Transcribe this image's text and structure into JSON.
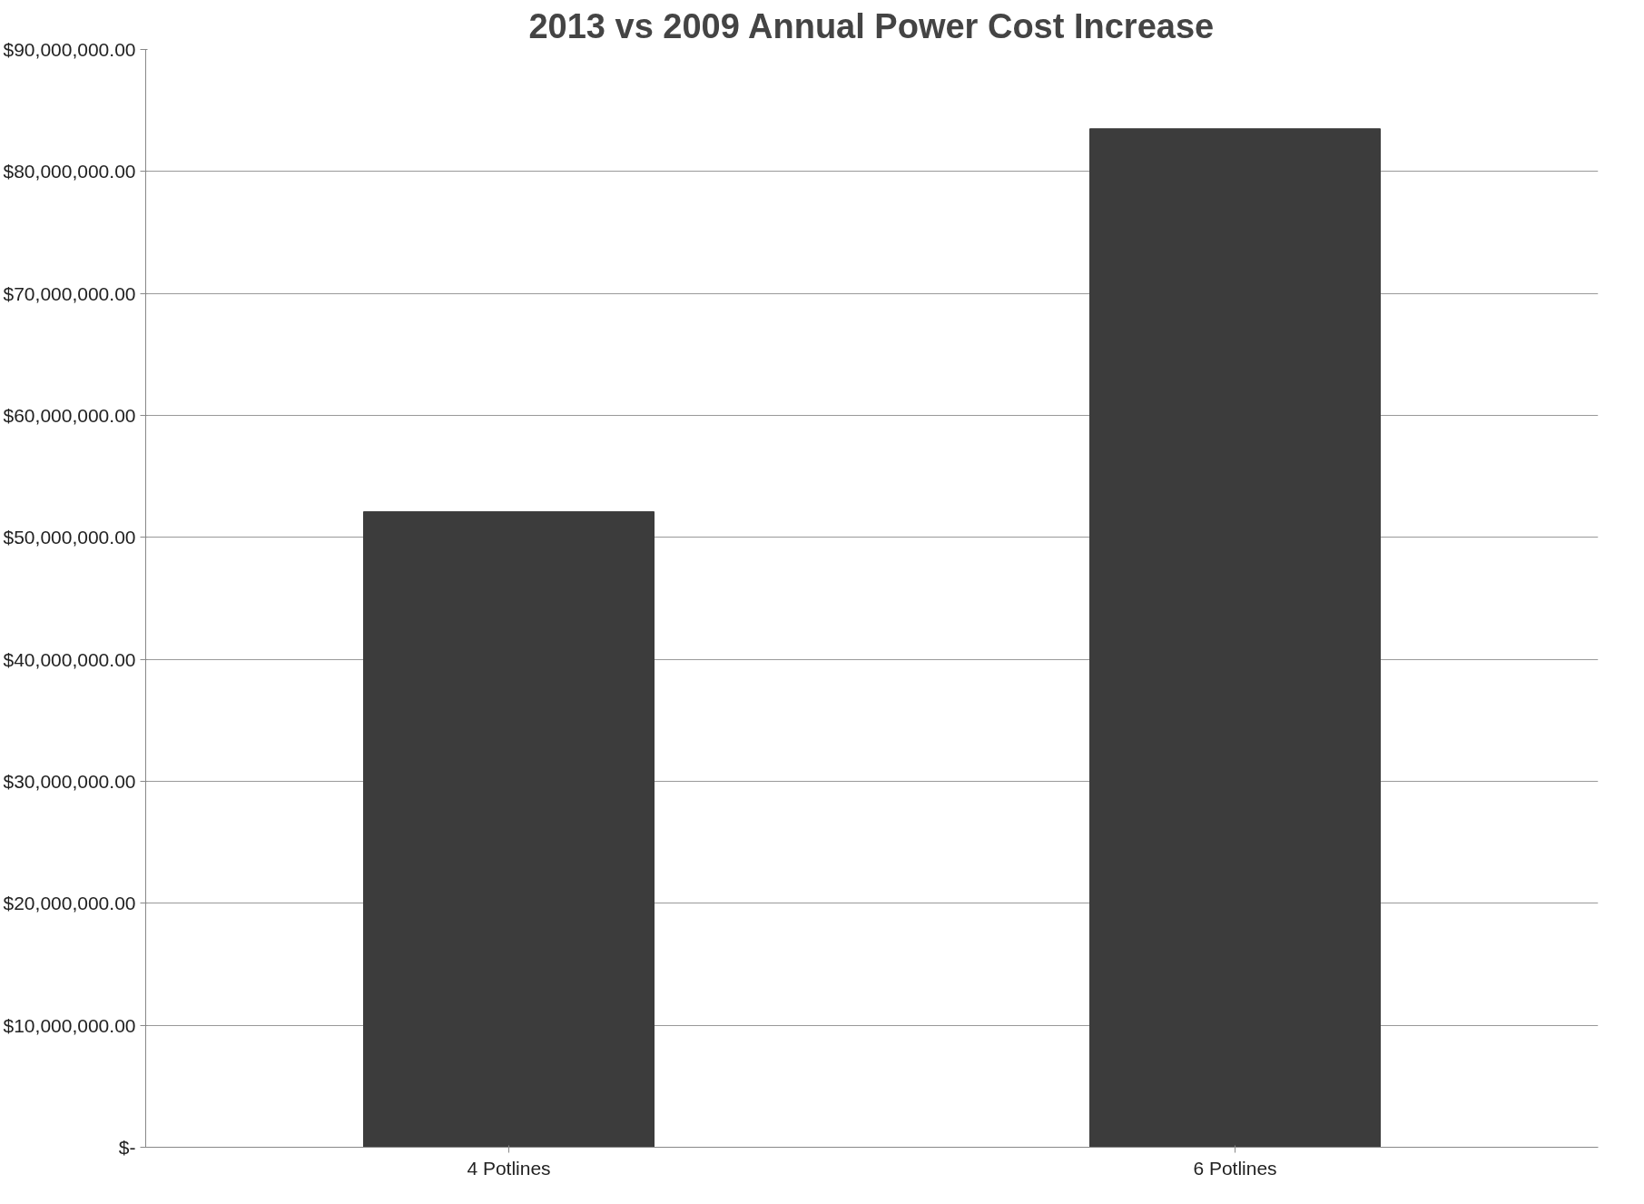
{
  "chart_data": {
    "type": "bar",
    "title": "2013 vs 2009 Annual Power Cost Increase",
    "categories": [
      "4 Potlines",
      "6 Potlines"
    ],
    "values": [
      52100000,
      83500000
    ],
    "color": "#3c3c3c",
    "ylim": [
      0,
      90000000
    ],
    "yticks": [
      {
        "value": 0,
        "label": "$-"
      },
      {
        "value": 10000000,
        "label": "$10,000,000.00"
      },
      {
        "value": 20000000,
        "label": "$20,000,000.00"
      },
      {
        "value": 30000000,
        "label": "$30,000,000.00"
      },
      {
        "value": 40000000,
        "label": "$40,000,000.00"
      },
      {
        "value": 50000000,
        "label": "$50,000,000.00"
      },
      {
        "value": 60000000,
        "label": "$60,000,000.00"
      },
      {
        "value": 70000000,
        "label": "$70,000,000.00"
      },
      {
        "value": 80000000,
        "label": "$80,000,000.00"
      },
      {
        "value": 90000000,
        "label": "$90,000,000.00"
      }
    ],
    "grid": "y"
  }
}
